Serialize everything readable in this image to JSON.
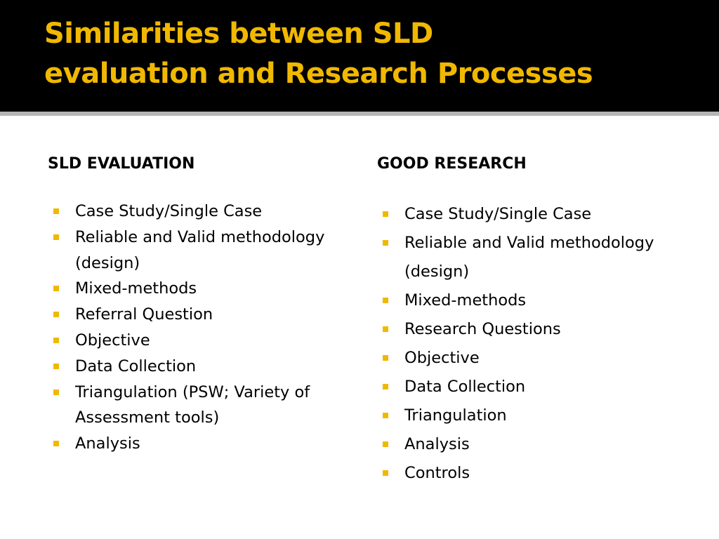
{
  "slide": {
    "title_line1": "Similarities between SLD",
    "title_line2": "evaluation and Research Processes",
    "accent_color": "#F0B800",
    "bullet_icon": "yellow-square-bullet",
    "left_column": {
      "heading": "SLD EVALUATION",
      "items": [
        "Case  Study/Single Case",
        "Reliable and Valid methodology (design)",
        "Mixed-methods",
        "Referral Question",
        "Objective",
        "Data Collection",
        "Triangulation (PSW; Variety of Assessment tools)",
        "Analysis"
      ]
    },
    "right_column": {
      "heading": "GOOD RESEARCH",
      "items": [
        "Case Study/Single Case",
        "Reliable and Valid methodology (design)",
        "Mixed-methods",
        "Research Questions",
        "Objective",
        "Data Collection",
        "Triangulation",
        "Analysis",
        "Controls"
      ]
    }
  }
}
